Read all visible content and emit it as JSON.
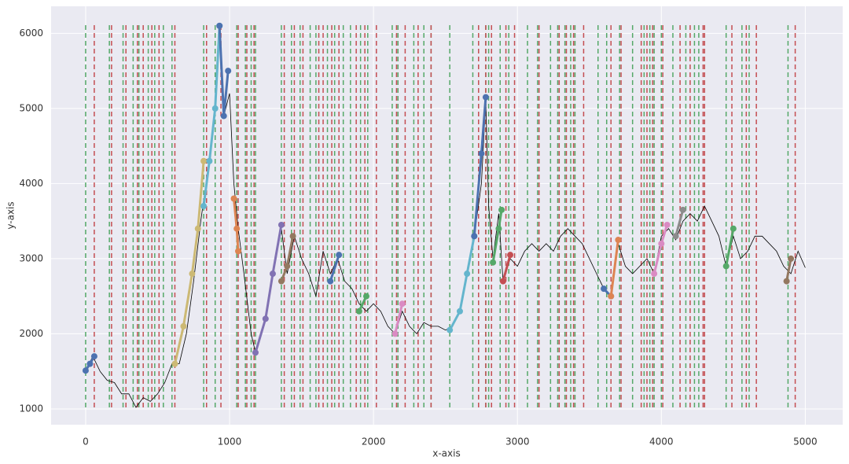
{
  "chart_data": {
    "type": "line",
    "xlabel": "x-axis",
    "ylabel": "y-axis",
    "xlim": [
      -240,
      5260
    ],
    "ylim": [
      790,
      6360
    ],
    "xticks": [
      0,
      1000,
      2000,
      3000,
      4000,
      5000
    ],
    "yticks": [
      1000,
      2000,
      3000,
      4000,
      5000,
      6000
    ],
    "grid": true,
    "price": {
      "color": "#000000",
      "x": [
        0,
        50,
        100,
        150,
        200,
        250,
        300,
        350,
        400,
        450,
        500,
        550,
        600,
        650,
        700,
        750,
        800,
        850,
        900,
        930,
        960,
        1000,
        1030,
        1060,
        1100,
        1150,
        1180,
        1250,
        1300,
        1360,
        1400,
        1450,
        1500,
        1550,
        1600,
        1650,
        1700,
        1750,
        1800,
        1850,
        1900,
        1950,
        2000,
        2050,
        2100,
        2150,
        2200,
        2250,
        2300,
        2350,
        2400,
        2450,
        2500,
        2550,
        2600,
        2650,
        2700,
        2750,
        2780,
        2800,
        2830,
        2870,
        2900,
        2950,
        3000,
        3050,
        3100,
        3150,
        3200,
        3250,
        3300,
        3350,
        3400,
        3450,
        3500,
        3550,
        3600,
        3650,
        3700,
        3750,
        3800,
        3850,
        3900,
        3950,
        4000,
        4050,
        4100,
        4150,
        4200,
        4250,
        4300,
        4350,
        4400,
        4450,
        4500,
        4550,
        4600,
        4650,
        4700,
        4750,
        4800,
        4850,
        4900,
        4950,
        5000
      ],
      "values": [
        1510,
        1700,
        1500,
        1380,
        1350,
        1200,
        1200,
        1020,
        1150,
        1100,
        1200,
        1350,
        1600,
        1600,
        2000,
        2700,
        3500,
        4200,
        5000,
        6100,
        4900,
        5200,
        4000,
        3400,
        2800,
        2000,
        1750,
        2200,
        2800,
        3400,
        2800,
        3300,
        3000,
        2800,
        2500,
        3100,
        2800,
        3000,
        2700,
        2600,
        2400,
        2300,
        2400,
        2300,
        2100,
        2000,
        2300,
        2100,
        2000,
        2150,
        2100,
        2100,
        2050,
        2100,
        2300,
        2800,
        3300,
        4000,
        5100,
        3700,
        3000,
        3600,
        2700,
        3000,
        2900,
        3100,
        3200,
        3100,
        3200,
        3100,
        3300,
        3400,
        3300,
        3200,
        3000,
        2800,
        2600,
        2500,
        3200,
        2900,
        2800,
        2900,
        3000,
        2800,
        3300,
        3400,
        3250,
        3500,
        3600,
        3500,
        3700,
        3500,
        3300,
        2900,
        3300,
        3000,
        3100,
        3300,
        3300,
        3200,
        3100,
        2900,
        2800,
        3100,
        2880
      ]
    },
    "segments": [
      {
        "color": "#4c72b0",
        "x": [
          0,
          30,
          60
        ],
        "values": [
          1510,
          1600,
          1700
        ]
      },
      {
        "color": "#ccb974",
        "x": [
          620,
          680,
          740,
          780,
          820
        ],
        "values": [
          1600,
          2100,
          2800,
          3400,
          4300
        ]
      },
      {
        "color": "#64b5cd",
        "x": [
          820,
          860,
          900,
          930
        ],
        "values": [
          3700,
          4300,
          5000,
          6100
        ]
      },
      {
        "color": "#4c72b0",
        "x": [
          930,
          960,
          990
        ],
        "values": [
          6100,
          4900,
          5500
        ]
      },
      {
        "color": "#dd8452",
        "x": [
          1030,
          1050,
          1060
        ],
        "values": [
          3800,
          3400,
          3100
        ]
      },
      {
        "color": "#8172b3",
        "x": [
          1180,
          1250,
          1300,
          1360
        ],
        "values": [
          1750,
          2200,
          2800,
          3450
        ]
      },
      {
        "color": "#937860",
        "x": [
          1360,
          1400,
          1440
        ],
        "values": [
          2700,
          2900,
          3300
        ]
      },
      {
        "color": "#4c72b0",
        "x": [
          1700,
          1760
        ],
        "values": [
          2700,
          3050
        ]
      },
      {
        "color": "#55a868",
        "x": [
          1900,
          1950
        ],
        "values": [
          2300,
          2500
        ]
      },
      {
        "color": "#da8bc3",
        "x": [
          2150,
          2200
        ],
        "values": [
          2000,
          2400
        ]
      },
      {
        "color": "#64b5cd",
        "x": [
          2530,
          2600,
          2650,
          2700
        ],
        "values": [
          2050,
          2300,
          2800,
          3300
        ]
      },
      {
        "color": "#4c72b0",
        "x": [
          2700,
          2750,
          2780
        ],
        "values": [
          3300,
          4400,
          5150
        ]
      },
      {
        "color": "#55a868",
        "x": [
          2830,
          2870,
          2890
        ],
        "values": [
          2950,
          3400,
          3650
        ]
      },
      {
        "color": "#c44e52",
        "x": [
          2900,
          2950
        ],
        "values": [
          2700,
          3050
        ]
      },
      {
        "color": "#4c72b0",
        "x": [
          3600,
          3650
        ],
        "values": [
          2600,
          2500
        ]
      },
      {
        "color": "#dd8452",
        "x": [
          3650,
          3700
        ],
        "values": [
          2500,
          3250
        ]
      },
      {
        "color": "#da8bc3",
        "x": [
          3950,
          4000,
          4040
        ],
        "values": [
          2800,
          3200,
          3450
        ]
      },
      {
        "color": "#8c8c8c",
        "x": [
          4100,
          4150
        ],
        "values": [
          3300,
          3650
        ]
      },
      {
        "color": "#55a868",
        "x": [
          4450,
          4500
        ],
        "values": [
          2900,
          3400
        ]
      },
      {
        "color": "#937860",
        "x": [
          4870,
          4900
        ],
        "values": [
          2700,
          3000
        ]
      }
    ],
    "vlines": [
      {
        "color": "#55a868",
        "x": [
          0,
          165,
          260,
          330,
          370,
          435,
          480,
          540,
          600,
          820,
          900,
          1050,
          1110,
          1150,
          1180,
          1360,
          1430,
          1490,
          1560,
          1600,
          1680,
          1730,
          1790,
          1840,
          1910,
          1960,
          2130,
          2170,
          2280,
          2350,
          2400,
          2530,
          2690,
          2780,
          2800,
          2880,
          2940,
          3070,
          3140,
          3230,
          3280,
          3330,
          3370,
          3400,
          3560,
          3620,
          3710,
          3800,
          3880,
          3920,
          3950,
          4000,
          4080,
          4170,
          4230,
          4260,
          4450,
          4560,
          4610,
          4880
        ]
      },
      {
        "color": "#c44e52",
        "x": [
          60,
          180,
          280,
          360,
          400,
          460,
          510,
          620,
          840,
          940,
          1060,
          1120,
          1170,
          1380,
          1450,
          1510,
          1620,
          1650,
          1710,
          1760,
          1880,
          1940,
          2020,
          2160,
          2220,
          2310,
          2400,
          2730,
          2780,
          2820,
          2920,
          2980,
          3150,
          3290,
          3340,
          3390,
          3460,
          3650,
          3720,
          3860,
          3900,
          3940,
          4010,
          4130,
          4200,
          4290,
          4300,
          4490,
          4590,
          4660,
          4930
        ]
      }
    ]
  }
}
